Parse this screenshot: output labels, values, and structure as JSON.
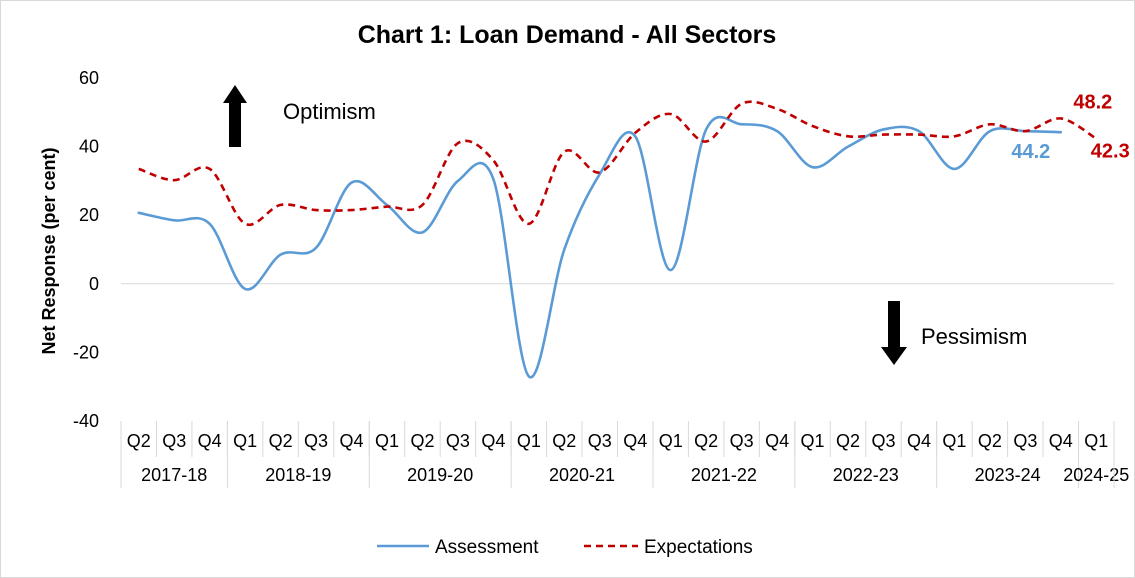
{
  "chart_data": {
    "type": "line",
    "title": "Chart 1: Loan Demand - All Sectors",
    "ylabel": "Net Response (per cent)",
    "xlabel": "",
    "ylim": [
      -40,
      60
    ],
    "yticks": [
      -40,
      -20,
      0,
      20,
      40,
      60
    ],
    "categories": [
      "Q2",
      "Q3",
      "Q4",
      "Q1",
      "Q2",
      "Q3",
      "Q4",
      "Q1",
      "Q2",
      "Q3",
      "Q4",
      "Q1",
      "Q2",
      "Q3",
      "Q4",
      "Q1",
      "Q2",
      "Q3",
      "Q4",
      "Q1",
      "Q2",
      "Q3",
      "Q4",
      "Q1",
      "Q2",
      "Q3",
      "Q4",
      "Q1"
    ],
    "groups": [
      {
        "label": "2017-18",
        "count": 3
      },
      {
        "label": "2018-19",
        "count": 4
      },
      {
        "label": "2019-20",
        "count": 4
      },
      {
        "label": "2020-21",
        "count": 4
      },
      {
        "label": "2021-22",
        "count": 4
      },
      {
        "label": "2022-23",
        "count": 4
      },
      {
        "label": "2023-24",
        "count": 4
      },
      {
        "label": "2024-25",
        "count": 1
      }
    ],
    "series": [
      {
        "name": "Assessment",
        "color": "#5b9bd5",
        "dash": "solid",
        "values": [
          20.7,
          18.5,
          17.5,
          -1.5,
          8.5,
          10.5,
          29.5,
          23.0,
          15.0,
          30.0,
          30.5,
          -27.0,
          10.0,
          32.0,
          43.0,
          4.0,
          45.0,
          46.5,
          44.5,
          34.0,
          40.0,
          45.0,
          44.5,
          33.5,
          44.5,
          44.5,
          44.2,
          null
        ],
        "end_label": "44.2"
      },
      {
        "name": "Expectations",
        "color": "#c00000",
        "dash": "dashed",
        "values": [
          33.5,
          30.2,
          33.5,
          17.5,
          23.0,
          21.5,
          21.5,
          22.5,
          23.0,
          41.0,
          36.0,
          17.5,
          38.5,
          32.5,
          44.0,
          49.5,
          41.5,
          52.5,
          51.0,
          46.0,
          43.0,
          43.5,
          43.5,
          43.0,
          46.5,
          44.5,
          48.2,
          42.3
        ],
        "point_labels": [
          {
            "index": 26,
            "text": "48.2"
          },
          {
            "index": 27,
            "text": "42.3"
          }
        ]
      }
    ],
    "annotations": {
      "optimism": "Optimism",
      "pessimism": "Pessimism"
    },
    "legend": {
      "position": "bottom",
      "entries": [
        "Assessment",
        "Expectations"
      ]
    }
  }
}
